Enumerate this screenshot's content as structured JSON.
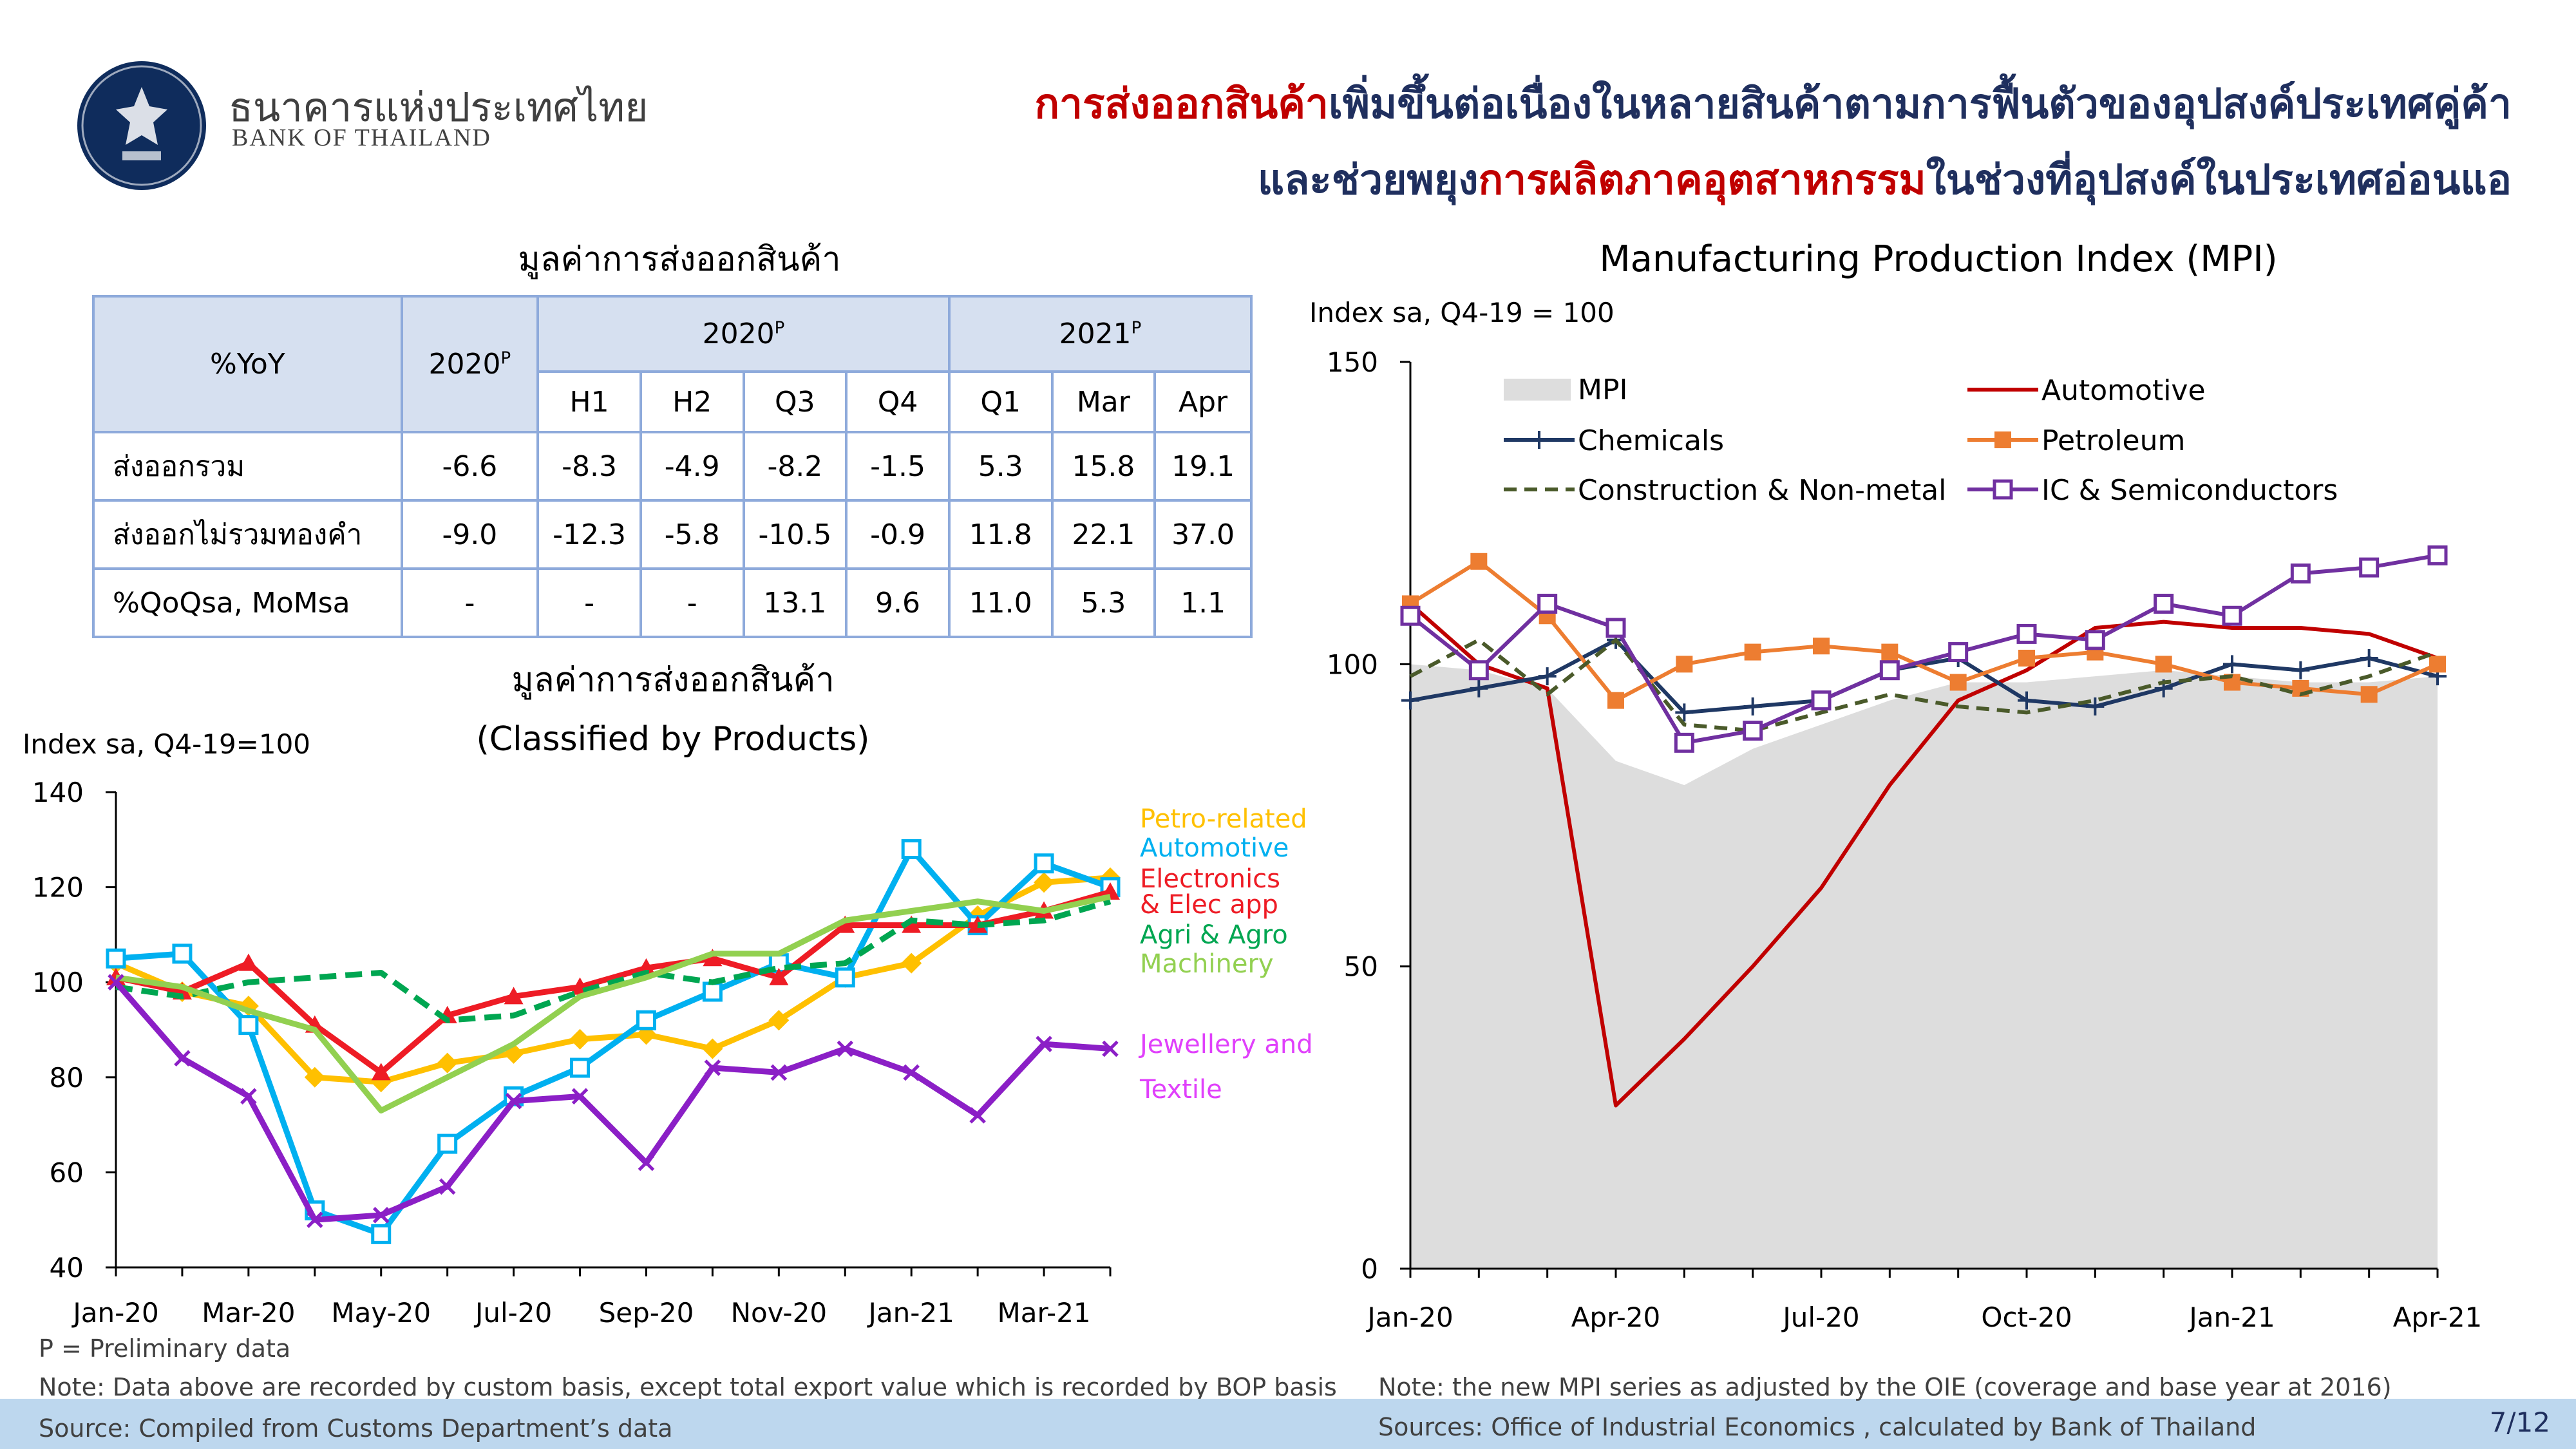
{
  "header": {
    "bank_name_th": "ธนาคารแห่งประเทศไทย",
    "bank_name_en": "BANK OF THAILAND",
    "headline_line1_red": "การส่งออกสินค้า",
    "headline_line1_navy": "เพิ่มขึ้นต่อเนื่องในหลายสินค้าตามการฟื้นตัวของอุปสงค์ประเทศคู่ค้า",
    "headline_line2_navy_a": "และช่วยพยุง",
    "headline_line2_red": "การผลิตภาคอุตสาหกรรม",
    "headline_line2_navy_b": "ในช่วงที่อุปสงค์ในประเทศอ่อนแอ"
  },
  "table": {
    "title": "มูลค่าการส่งออกสินค้า",
    "corner": "%YoY",
    "col_2020": "2020",
    "group_2020": "2020",
    "group_2021": "2021",
    "sup": "P",
    "sub_headers": [
      "H1",
      "H2",
      "Q3",
      "Q4",
      "Q1",
      "Mar",
      "Apr"
    ],
    "rows": [
      {
        "label": "ส่งออกรวม",
        "annual": "-6.6",
        "values": [
          "-8.3",
          "-4.9",
          "-8.2",
          "-1.5",
          "5.3",
          "15.8",
          "19.1"
        ]
      },
      {
        "label": "ส่งออกไม่รวมทองคำ",
        "annual": "-9.0",
        "values": [
          "-12.3",
          "-5.8",
          "-10.5",
          "-0.9",
          "11.8",
          "22.1",
          "37.0"
        ]
      },
      {
        "label": "%QoQsa, MoMsa",
        "annual": "-",
        "values": [
          "-",
          "-",
          "13.1",
          "9.6",
          "11.0",
          "5.3",
          "1.1"
        ]
      }
    ]
  },
  "chart_data": [
    {
      "type": "line",
      "title": "มูลค่าการส่งออกสินค้า",
      "subtitle": "(Classified by Products)",
      "ylabel": "Index sa, Q4-19=100",
      "ylim": [
        40,
        140
      ],
      "yticks": [
        40,
        60,
        80,
        100,
        120,
        140
      ],
      "x": [
        "Jan-20",
        "Feb-20",
        "Mar-20",
        "Apr-20",
        "May-20",
        "Jun-20",
        "Jul-20",
        "Aug-20",
        "Sep-20",
        "Oct-20",
        "Nov-20",
        "Dec-20",
        "Jan-21",
        "Feb-21",
        "Mar-21",
        "Apr-21"
      ],
      "xtick_labels": [
        "Jan-20",
        "Mar-20",
        "May-20",
        "Jul-20",
        "Sep-20",
        "Nov-20",
        "Jan-21",
        "Mar-21"
      ],
      "series": [
        {
          "name": "Petro-related",
          "color": "#ffc000",
          "marker": "diamond",
          "values": [
            104,
            98,
            95,
            80,
            79,
            83,
            85,
            88,
            89,
            86,
            92,
            101,
            104,
            114,
            121,
            122
          ]
        },
        {
          "name": "Automotive",
          "color": "#00b0f0",
          "marker": "square-open",
          "values": [
            105,
            106,
            91,
            52,
            47,
            66,
            76,
            82,
            92,
            98,
            104,
            101,
            128,
            112,
            125,
            120
          ]
        },
        {
          "name": "Electronics & Elec app",
          "color": "#ee1c25",
          "marker": "triangle",
          "values": [
            101,
            98,
            104,
            91,
            81,
            93,
            97,
            99,
            103,
            105,
            101,
            112,
            112,
            112,
            115,
            119
          ]
        },
        {
          "name": "Agri & Agro",
          "color": "#00a651",
          "style": "dashed",
          "values": [
            99,
            97,
            100,
            101,
            102,
            92,
            93,
            98,
            102,
            100,
            103,
            104,
            113,
            112,
            113,
            117
          ]
        },
        {
          "name": "Machinery",
          "color": "#92d050",
          "values": [
            101,
            99,
            94,
            90,
            73,
            80,
            87,
            97,
            101,
            106,
            106,
            113,
            115,
            117,
            115,
            118
          ]
        },
        {
          "name": "Jewellery and Textile",
          "color": "#8b1fc6",
          "marker": "x",
          "values": [
            100,
            84,
            76,
            50,
            51,
            57,
            75,
            76,
            62,
            82,
            81,
            86,
            81,
            72,
            87,
            86
          ]
        }
      ]
    },
    {
      "type": "line",
      "title": "Manufacturing Production Index (MPI)",
      "ylabel": "Index sa, Q4-19 = 100",
      "ylim": [
        0,
        150
      ],
      "yticks": [
        0,
        50,
        100,
        150
      ],
      "x": [
        "Jan-20",
        "Feb-20",
        "Mar-20",
        "Apr-20",
        "May-20",
        "Jun-20",
        "Jul-20",
        "Aug-20",
        "Sep-20",
        "Oct-20",
        "Nov-20",
        "Dec-20",
        "Jan-21",
        "Feb-21",
        "Mar-21",
        "Apr-21"
      ],
      "xtick_labels": [
        "Jan-20",
        "Apr-20",
        "Jul-20",
        "Oct-20",
        "Jan-21",
        "Apr-21"
      ],
      "mpi_area": {
        "name": "MPI",
        "color": "#dddddd",
        "values": [
          100,
          99,
          96,
          84,
          80,
          86,
          90,
          94,
          97,
          97,
          98,
          99,
          98,
          97,
          97,
          98
        ]
      },
      "series": [
        {
          "name": "Automotive",
          "color": "#c00000",
          "values": [
            110,
            100,
            96,
            27,
            38,
            50,
            63,
            80,
            94,
            99,
            106,
            107,
            106,
            106,
            105,
            101
          ]
        },
        {
          "name": "Chemicals",
          "color": "#1f3864",
          "marker": "plus",
          "values": [
            94,
            96,
            98,
            104,
            92,
            93,
            94,
            99,
            101,
            94,
            93,
            96,
            100,
            99,
            101,
            98
          ]
        },
        {
          "name": "Petroleum",
          "color": "#ed7d31",
          "marker": "square",
          "values": [
            110,
            117,
            108,
            94,
            100,
            102,
            103,
            102,
            97,
            101,
            102,
            100,
            97,
            96,
            95,
            100
          ]
        },
        {
          "name": "Construction & Non-metal",
          "color": "#4a5a2a",
          "style": "dashed",
          "values": [
            98,
            104,
            95,
            104,
            90,
            89,
            92,
            95,
            93,
            92,
            94,
            97,
            98,
            95,
            98,
            102
          ]
        },
        {
          "name": "IC & Semiconductors",
          "color": "#7030a0",
          "marker": "square-open",
          "values": [
            108,
            99,
            110,
            106,
            87,
            89,
            94,
            99,
            102,
            105,
            104,
            110,
            108,
            115,
            116,
            118
          ]
        }
      ]
    }
  ],
  "footer": {
    "prelim_note": "P = Preliminary data",
    "note_left": "Note: Data above are recorded by custom basis, except total export value which is recorded by BOP basis",
    "source_left": "Source: Compiled from Customs Department’s data",
    "note_right": "Note: the new MPI series as adjusted by the OIE (coverage and base year at 2016)",
    "source_right": "Sources: Office of Industrial Economics , calculated by Bank of Thailand",
    "page": "7/12"
  }
}
